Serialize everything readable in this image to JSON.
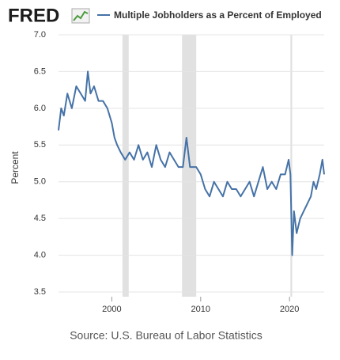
{
  "chart_data": {
    "type": "line",
    "logo": "FRED",
    "title": "Multiple Jobholders as a Percent of Employed",
    "y_label": "Percent",
    "source": "Source: U.S. Bureau of Labor Statistics",
    "xlim": [
      1994,
      2023.9
    ],
    "ylim": [
      3.5,
      7
    ],
    "xticks": [
      2000,
      2010,
      2020
    ],
    "yticks": [
      {
        "value": 7,
        "label": "7.0"
      },
      6.5,
      {
        "value": 6,
        "label": "6.0"
      },
      5.5,
      {
        "value": 5,
        "label": "5.0"
      },
      4.5,
      {
        "value": 4,
        "label": "4.0"
      },
      3.5
    ],
    "grid": true,
    "recessions": [
      [
        2001.2,
        2001.9
      ],
      [
        2007.9,
        2009.5
      ],
      [
        2020.1,
        2020.3
      ]
    ],
    "recession_color": "#e1e1e1",
    "series": [
      {
        "name": "Multiple Jobholders as a Percent of Employed",
        "color": "#4572a7",
        "x": [
          1994.0,
          1994.3,
          1994.6,
          1995.0,
          1995.5,
          1996.0,
          1996.5,
          1997.0,
          1997.3,
          1997.6,
          1998.0,
          1998.5,
          1999.0,
          1999.5,
          2000.0,
          2000.3,
          2000.6,
          2001.0,
          2001.5,
          2002.0,
          2002.5,
          2003.0,
          2003.5,
          2004.0,
          2004.5,
          2005.0,
          2005.5,
          2006.0,
          2006.5,
          2007.0,
          2007.5,
          2008.0,
          2008.4,
          2008.8,
          2009.5,
          2010.0,
          2010.5,
          2011.0,
          2011.5,
          2012.0,
          2012.5,
          2013.0,
          2013.5,
          2014.0,
          2014.5,
          2015.0,
          2015.5,
          2016.0,
          2016.5,
          2017.0,
          2017.5,
          2018.0,
          2018.5,
          2019.0,
          2019.5,
          2019.9,
          2020.1,
          2020.3,
          2020.5,
          2020.8,
          2021.2,
          2021.6,
          2022.0,
          2022.4,
          2022.7,
          2023.0,
          2023.4,
          2023.7,
          2023.9
        ],
        "values": [
          5.7,
          6.0,
          5.9,
          6.2,
          6.0,
          6.3,
          6.2,
          6.1,
          6.5,
          6.2,
          6.3,
          6.1,
          6.1,
          6.0,
          5.8,
          5.6,
          5.5,
          5.4,
          5.3,
          5.4,
          5.3,
          5.5,
          5.3,
          5.4,
          5.2,
          5.5,
          5.3,
          5.2,
          5.4,
          5.3,
          5.2,
          5.2,
          5.6,
          5.2,
          5.2,
          5.1,
          4.9,
          4.8,
          5.0,
          4.9,
          4.8,
          5.0,
          4.9,
          4.9,
          4.8,
          4.9,
          5.0,
          4.8,
          5.0,
          5.2,
          4.9,
          5.0,
          4.9,
          5.1,
          5.1,
          5.3,
          5.1,
          4.0,
          4.6,
          4.3,
          4.5,
          4.6,
          4.7,
          4.8,
          5.0,
          4.9,
          5.1,
          5.3,
          5.1
        ]
      }
    ]
  }
}
